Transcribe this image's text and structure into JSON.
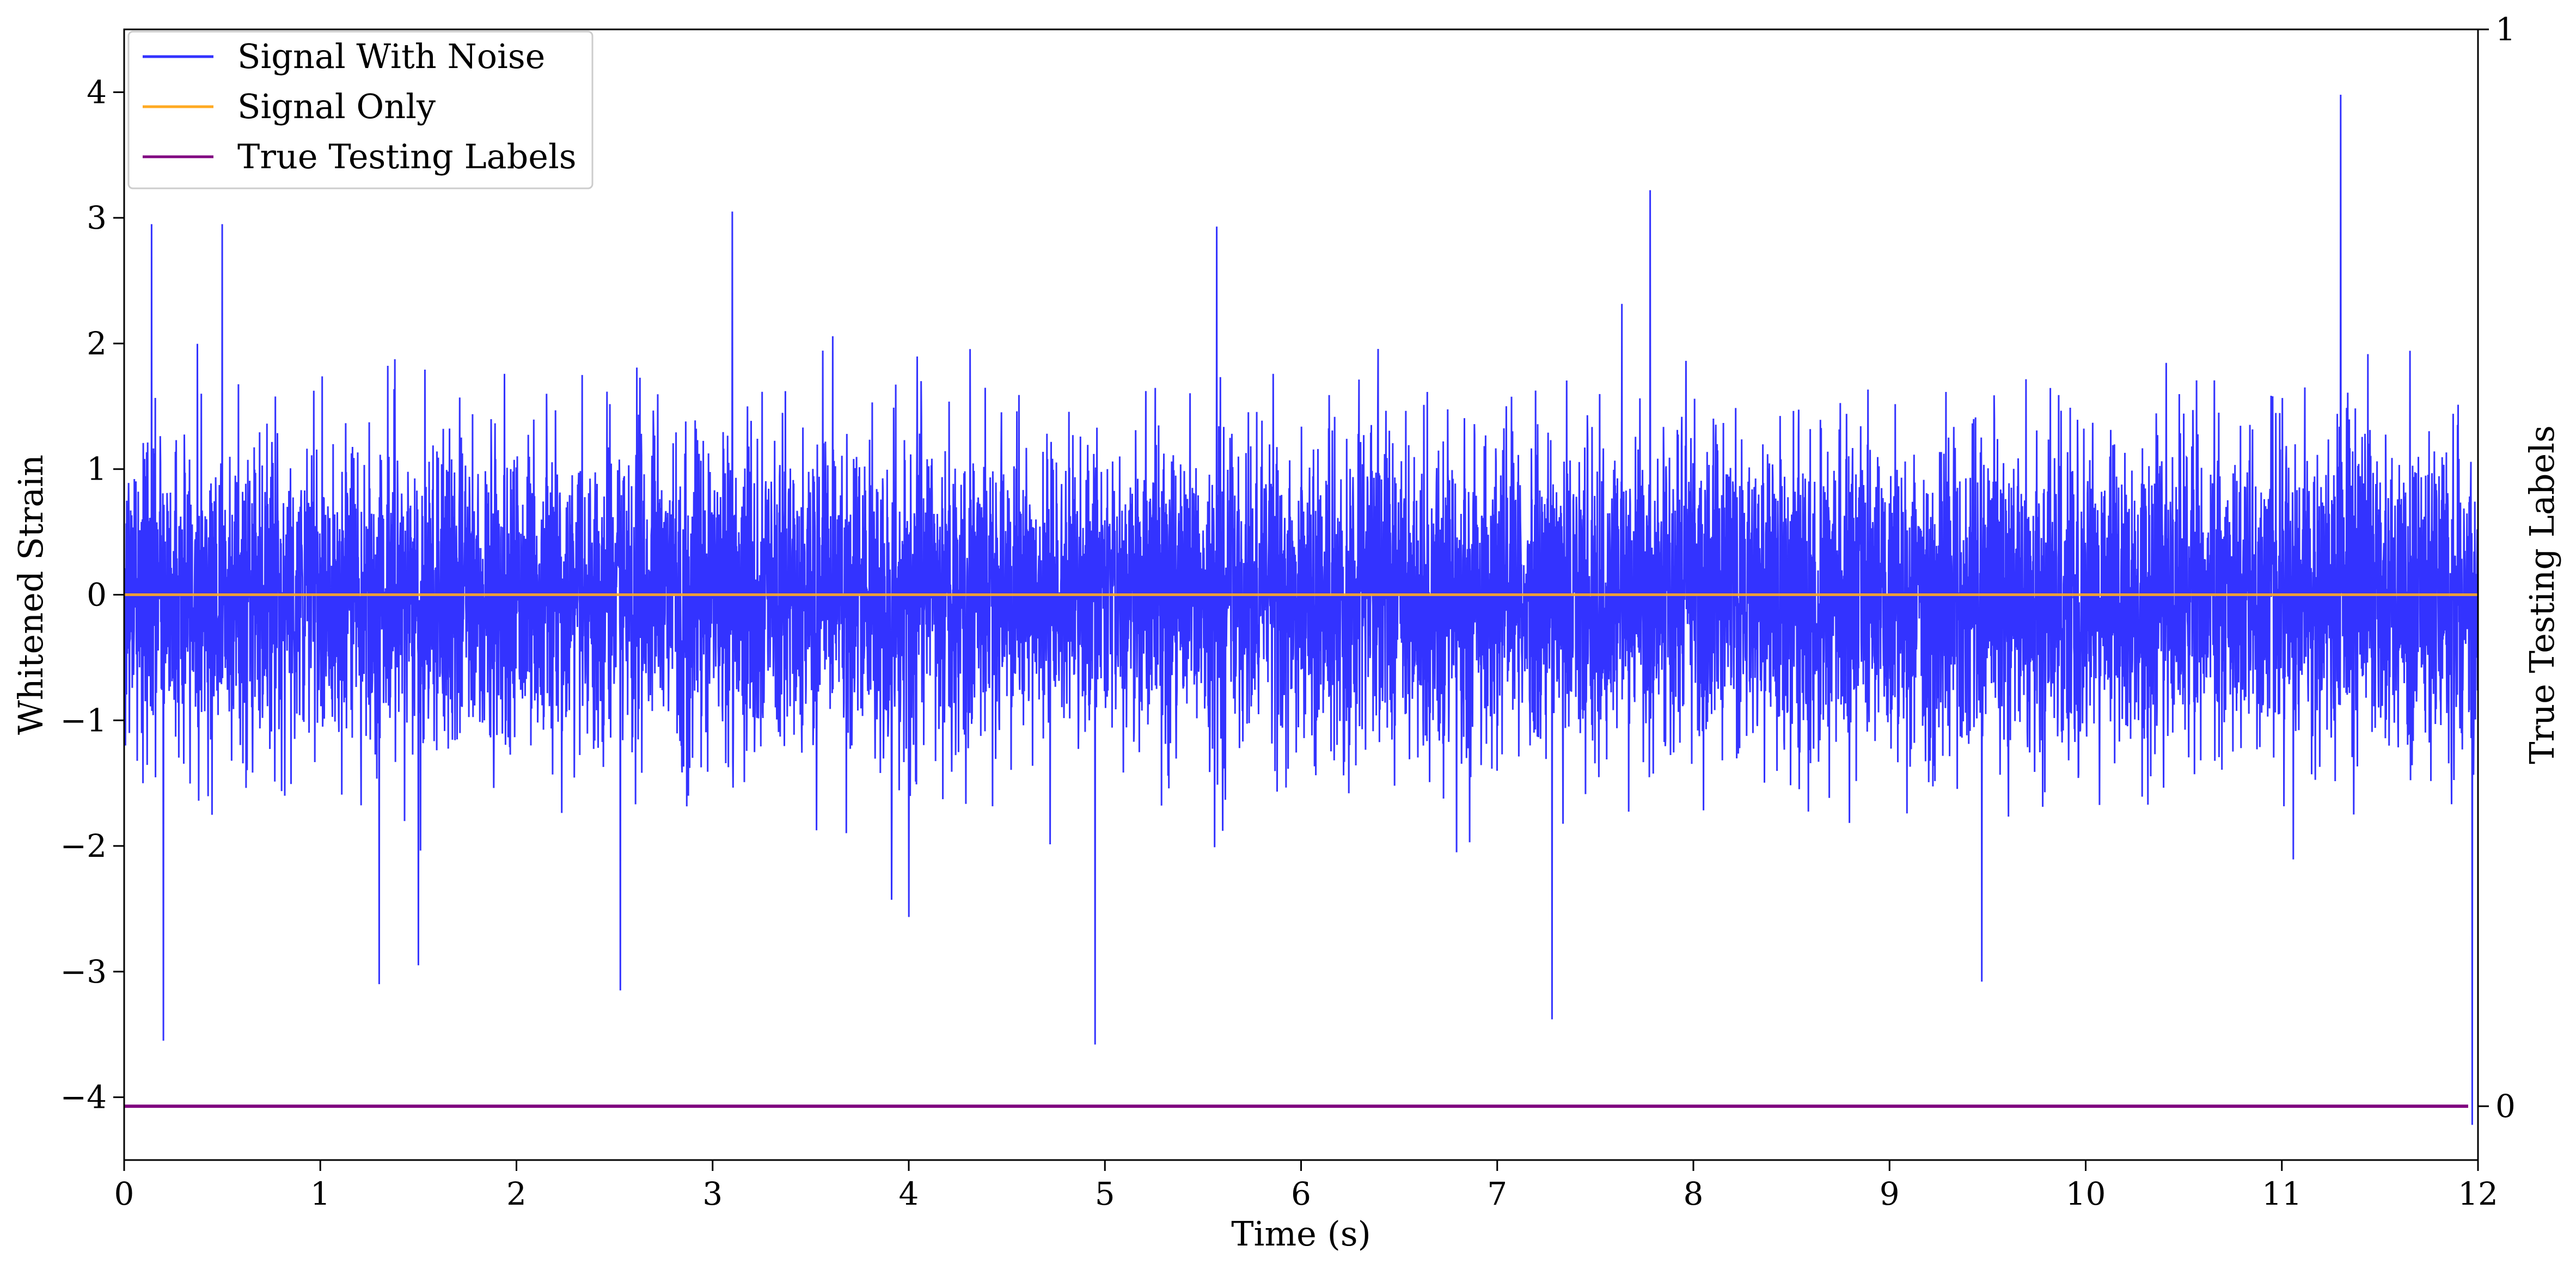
{
  "chart_data": {
    "type": "line",
    "title": "",
    "xlabel": "Time (s)",
    "ylabel": "Whitened Strain",
    "y2label": "True Testing Labels",
    "xlim": [
      0,
      12
    ],
    "ylim": [
      -4.5,
      4.5
    ],
    "y2lim": [
      -0.05,
      1
    ],
    "xticks": [
      0,
      1,
      2,
      3,
      4,
      5,
      6,
      7,
      8,
      9,
      10,
      11,
      12
    ],
    "xtick_labels": [
      "0",
      "1",
      "2",
      "3",
      "4",
      "5",
      "6",
      "7",
      "8",
      "9",
      "10",
      "11",
      "12"
    ],
    "yticks": [
      -4,
      -3,
      -2,
      -1,
      0,
      1,
      2,
      3,
      4
    ],
    "ytick_labels": [
      "−4",
      "−3",
      "−2",
      "−1",
      "0",
      "1",
      "2",
      "3",
      "4"
    ],
    "y2ticks": [
      0,
      1
    ],
    "y2tick_labels": [
      "0",
      "1"
    ],
    "grid": false,
    "legend_position": "top-left",
    "series": [
      {
        "name": "Signal With Noise",
        "color": "#3333ff",
        "axis": "left",
        "style": "dense white-noise strain, roughly |y| < 1.5 with frequent spikes to about ±3",
        "peaks": [
          [
            0.14,
            2.95
          ],
          [
            0.2,
            -3.55
          ],
          [
            0.5,
            2.95
          ],
          [
            1.3,
            -3.1
          ],
          [
            1.5,
            -2.95
          ],
          [
            2.53,
            -3.15
          ],
          [
            3.1,
            3.05
          ],
          [
            4.95,
            -3.58
          ],
          [
            5.57,
            2.93
          ],
          [
            7.28,
            -3.38
          ],
          [
            7.78,
            3.22
          ],
          [
            9.47,
            -3.08
          ],
          [
            11.3,
            3.98
          ],
          [
            11.97,
            -4.22
          ]
        ]
      },
      {
        "name": "Signal Only",
        "color": "#ffaa22",
        "axis": "left",
        "x": [
          0,
          12
        ],
        "y": [
          0,
          0
        ]
      },
      {
        "name": "True Testing Labels",
        "color": "#800080",
        "axis": "right",
        "x": [
          0,
          11.95
        ],
        "y": [
          0,
          0
        ]
      }
    ]
  }
}
